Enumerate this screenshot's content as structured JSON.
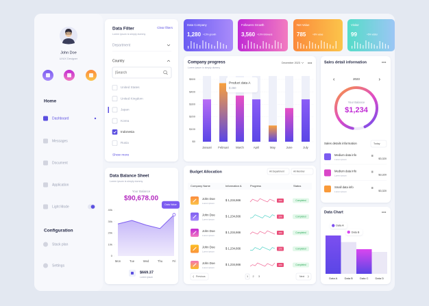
{
  "sidebar": {
    "name": "John Doe",
    "role": "UI/UX Designer",
    "section1": "Home",
    "menu": [
      "Dashboard",
      "Messages",
      "Document",
      "Application",
      "Light Mode"
    ],
    "section2": "Configuration",
    "menu2": [
      "Stack plan",
      "Settings"
    ]
  },
  "filter": {
    "title": "Data Filter",
    "clear": "Clear filters",
    "subtitle": "Lorem ipsum is simply dummy",
    "department": "Department",
    "country": "Country",
    "search": "|Search",
    "countries": [
      "United States",
      "United Kingdom",
      "Japan",
      "Korea",
      "Indonesia",
      "Rusia"
    ],
    "checked": [
      false,
      false,
      false,
      false,
      true,
      false
    ],
    "more": "Show more"
  },
  "balance": {
    "title": "Data Balance Sheet",
    "subtitle": "Lorem ipsum is simply dummy",
    "label": "Your Balance",
    "amount": "$90,678.00",
    "chart": {
      "type": "area",
      "categories": [
        "Mon",
        "Tue",
        "Wed",
        "Thu",
        "Fri"
      ],
      "values": [
        28000,
        31000,
        27000,
        24000,
        36000
      ],
      "color": "#7c5cf0",
      "ylim": [
        0,
        40000
      ],
      "yticks": [
        0,
        {
          "value": 10000,
          "label": "10k"
        },
        {
          "value": 20000,
          "label": "20k"
        },
        {
          "value": 30000,
          "label": "30k"
        },
        {
          "value": 40000,
          "label": "40k"
        }
      ],
      "tooltip": "Data Value"
    },
    "footer_value": "$669.37",
    "footer_sub": "Lorem ipsum"
  },
  "stats": [
    {
      "title": "Data Company",
      "value": "1,280",
      "note": "+15% growth",
      "colors": [
        "#6a5cf2",
        "#a98bfa"
      ]
    },
    {
      "title": "Followers Growth",
      "value": "3,560",
      "note": "+10% followers",
      "colors": [
        "#c02ad4",
        "#f27bc0"
      ]
    },
    {
      "title": "Net Value",
      "value": "785",
      "note": "+8% value",
      "colors": [
        "#fb8a3c",
        "#fbc44a"
      ]
    },
    {
      "title": "Visitor",
      "value": "99",
      "note": "+5% visitor",
      "colors": [
        "#55dcc8",
        "#9cc6f5"
      ]
    }
  ],
  "progress": {
    "title": "Company progress",
    "subtitle": "Lorem ipsum is simply dummy",
    "period": "December 2023",
    "chart": {
      "type": "bar",
      "categories": [
        "Januari",
        "Februari",
        "March",
        "April",
        "May",
        "June",
        "July"
      ],
      "values": [
        340,
        470,
        370,
        340,
        130,
        270,
        340
      ],
      "colors": [
        "#b86cf5",
        "#f9a03c",
        "#e94fc4",
        "#8b5cf6",
        "#f9a03c",
        "#e94fc4",
        "#8b5cf6"
      ],
      "ylim": [
        0,
        500
      ],
      "yticks": [
        {
          "value": 0,
          "label": "$0"
        },
        {
          "value": 100,
          "label": "$100"
        },
        {
          "value": 200,
          "label": "$200"
        },
        {
          "value": 300,
          "label": "$300"
        },
        {
          "value": 400,
          "label": "$400"
        },
        {
          "value": 500,
          "label": "$500"
        }
      ],
      "grid": true,
      "tooltip": {
        "title": "Product data A",
        "value": "$ 250"
      }
    }
  },
  "budget": {
    "title": "Budget Allocation",
    "filters": [
      "All Department",
      "All Member"
    ],
    "columns": [
      "Company Name",
      "Information A",
      "Progress",
      "Status"
    ],
    "rows": [
      {
        "name": "John Doe",
        "sub": "Lorem ipsum",
        "amount": "$ 1,234,666",
        "badge": "10%",
        "status": "Completed"
      },
      {
        "name": "John Doe",
        "sub": "Lorem ipsum",
        "amount": "$ 1,234,666",
        "badge": "10%",
        "status": "Completed"
      },
      {
        "name": "John Doe",
        "sub": "Lorem ipsum",
        "amount": "$ 1,234,666",
        "badge": "10%",
        "status": "Completed"
      },
      {
        "name": "John Doe",
        "sub": "Lorem ipsum",
        "amount": "$ 1,234,666",
        "badge": "10%",
        "status": "Completed"
      },
      {
        "name": "John Doe",
        "sub": "Lorem ipsum",
        "amount": "$ 1,234,666",
        "badge": "10%",
        "status": "Completed"
      }
    ],
    "prev": "Previous",
    "pages": [
      1,
      2,
      3
    ],
    "next": "Next"
  },
  "sales": {
    "title": "Sales detail information",
    "year": "2023",
    "label": "Your Balance",
    "amount": "$1,234",
    "subtitle": "Sales details information",
    "filter": "Today",
    "items": [
      {
        "name": "Medium data info",
        "sub": "Lorem ipsum",
        "value": "$3,320",
        "color": "#7c5cf0"
      },
      {
        "name": "Medium data info",
        "sub": "Lorem ipsum",
        "value": "$3,320",
        "color": "#d946c8"
      },
      {
        "name": "Small data info",
        "sub": "Lorem ipsum",
        "value": "$3,320",
        "color": "#f99a3a"
      }
    ]
  },
  "data_chart": {
    "title": "Data Chart",
    "chart": {
      "type": "bar",
      "categories": [
        "Data A",
        "Data B",
        "Data C",
        "Data D"
      ],
      "values": [
        70,
        58,
        45,
        40
      ],
      "colors": [
        "#7c4ff0",
        "#e7e3f6",
        "#d946ef",
        "#ebe8f6"
      ],
      "ylim": [
        0,
        100
      ],
      "tooltips": [
        "Data A",
        "Data B"
      ]
    }
  }
}
